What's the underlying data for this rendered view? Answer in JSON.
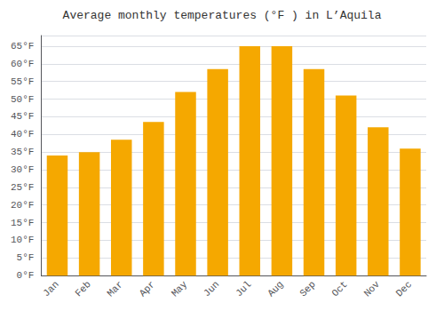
{
  "chart_data": {
    "type": "bar",
    "title": "Average monthly temperatures (°F ) in L’Aquila",
    "categories": [
      "Jan",
      "Feb",
      "Mar",
      "Apr",
      "May",
      "Jun",
      "Jul",
      "Aug",
      "Sep",
      "Oct",
      "Nov",
      "Dec"
    ],
    "values": [
      34,
      35,
      38.5,
      43.5,
      52,
      58.5,
      65,
      65,
      58.5,
      51,
      42,
      36
    ],
    "color": "#F5A800",
    "ylim": [
      0,
      68
    ],
    "yticks": [
      {
        "value": 0,
        "label": "0°F"
      },
      {
        "value": 5,
        "label": "5°F"
      },
      {
        "value": 10,
        "label": "10°F"
      },
      {
        "value": 15,
        "label": "15°F"
      },
      {
        "value": 20,
        "label": "20°F"
      },
      {
        "value": 25,
        "label": "25°F"
      },
      {
        "value": 30,
        "label": "30°F"
      },
      {
        "value": 35,
        "label": "35°F"
      },
      {
        "value": 40,
        "label": "40°F"
      },
      {
        "value": 45,
        "label": "45°F"
      },
      {
        "value": 50,
        "label": "50°F"
      },
      {
        "value": 55,
        "label": "55°F"
      },
      {
        "value": 60,
        "label": "60°F"
      },
      {
        "value": 65,
        "label": "65°F"
      }
    ],
    "grid": true
  }
}
